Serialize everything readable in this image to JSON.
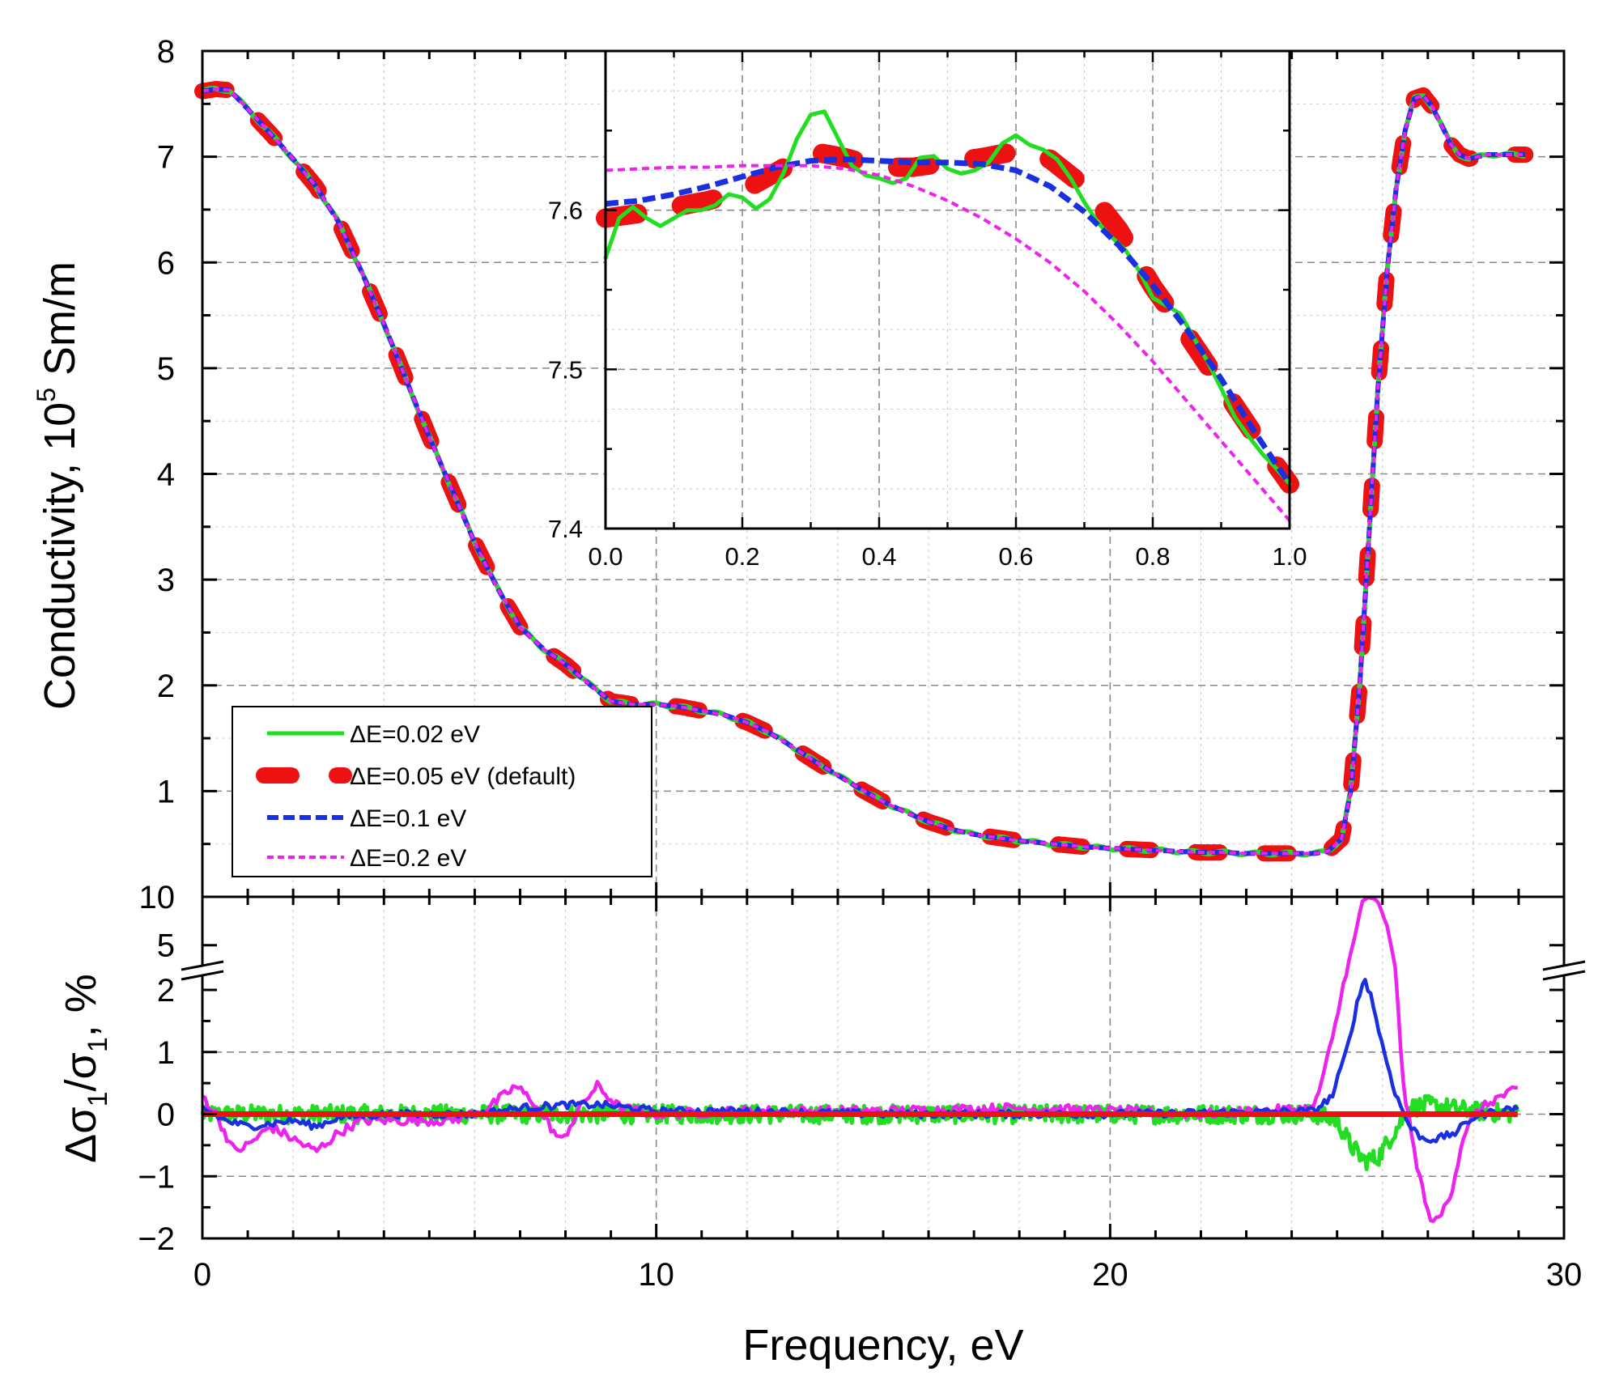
{
  "chart_data": [
    {
      "id": "main",
      "type": "line",
      "title": "",
      "xlabel": "Frequency, eV",
      "ylabel": "Conductivity, 10",
      "ylabel_exp": "5",
      "ylabel_unit": " Sm/m",
      "xlim": [
        0,
        30
      ],
      "ylim": [
        0,
        8
      ],
      "xticks": [
        0,
        10,
        20,
        30
      ],
      "yticks": [
        1,
        2,
        3,
        4,
        5,
        6,
        7,
        8
      ],
      "xtick_labels": [
        "0",
        "10",
        "20",
        "30"
      ],
      "ytick_labels": [
        "1",
        "2",
        "3",
        "4",
        "5",
        "6",
        "7",
        "8"
      ],
      "grid": true,
      "legend_position": "lower-left",
      "legend": [
        {
          "label": "ΔE=0.02 eV",
          "color": "#22dd22",
          "style": "solid"
        },
        {
          "label": "ΔE=0.05 eV (default)",
          "color": "#ee1111",
          "style": "thick-dash"
        },
        {
          "label": "ΔE=0.1 eV",
          "color": "#1a2fe0",
          "style": "dash"
        },
        {
          "label": "ΔE=0.2 eV",
          "color": "#ee22ee",
          "style": "short-dash"
        }
      ],
      "curve": {
        "x": [
          0,
          0.3,
          0.6,
          1,
          1.5,
          2,
          2.5,
          3,
          3.5,
          4,
          4.5,
          5,
          5.5,
          6,
          6.5,
          7,
          7.5,
          8,
          8.5,
          9,
          9.5,
          10,
          10.5,
          11,
          11.5,
          12,
          12.5,
          13,
          13.5,
          14,
          14.5,
          15,
          15.5,
          16,
          16.5,
          17,
          17.5,
          18,
          18.5,
          19,
          19.5,
          20,
          20.5,
          21,
          21.5,
          22,
          22.5,
          23,
          23.5,
          24,
          24.5,
          24.8,
          25.1,
          25.3,
          25.5,
          25.7,
          25.9,
          26.1,
          26.3,
          26.5,
          26.7,
          26.9,
          27.1,
          27.3,
          27.5,
          27.7,
          27.9,
          28.1,
          28.3,
          28.5,
          28.7,
          28.9,
          29.2
        ],
        "y": [
          7.62,
          7.64,
          7.63,
          7.45,
          7.22,
          6.98,
          6.72,
          6.38,
          5.92,
          5.42,
          4.88,
          4.35,
          3.85,
          3.35,
          2.92,
          2.55,
          2.35,
          2.2,
          2.02,
          1.85,
          1.82,
          1.82,
          1.8,
          1.76,
          1.72,
          1.65,
          1.55,
          1.42,
          1.28,
          1.15,
          1.02,
          0.9,
          0.8,
          0.71,
          0.64,
          0.59,
          0.56,
          0.53,
          0.51,
          0.49,
          0.47,
          0.46,
          0.45,
          0.44,
          0.43,
          0.42,
          0.42,
          0.41,
          0.41,
          0.41,
          0.41,
          0.43,
          0.55,
          1.0,
          2.0,
          3.4,
          4.8,
          5.9,
          6.7,
          7.25,
          7.55,
          7.58,
          7.47,
          7.3,
          7.12,
          7.02,
          6.98,
          7.0,
          7.02,
          7.02,
          7.02,
          7.02,
          7.02
        ]
      },
      "series": [
        {
          "name": "ΔE=0.02 eV",
          "color": "#22dd22"
        },
        {
          "name": "ΔE=0.05 eV (default)",
          "color": "#ee1111"
        },
        {
          "name": "ΔE=0.1 eV",
          "color": "#1a2fe0"
        },
        {
          "name": "ΔE=0.2 eV",
          "color": "#ee22ee"
        }
      ]
    },
    {
      "id": "inset",
      "type": "line",
      "xlabel": "",
      "ylabel": "",
      "xlim": [
        0.0,
        1.0
      ],
      "ylim": [
        7.4,
        7.7
      ],
      "xticks": [
        0.0,
        0.2,
        0.4,
        0.6,
        0.8,
        1.0
      ],
      "yticks": [
        7.4,
        7.5,
        7.6
      ],
      "xtick_labels": [
        "0.0",
        "0.2",
        "0.4",
        "0.6",
        "0.8",
        "1.0"
      ],
      "ytick_labels": [
        "7.4",
        "7.5",
        "7.6"
      ],
      "grid": true,
      "series": [
        {
          "name": "ΔE=0.02 eV",
          "color": "#22dd22",
          "x": [
            0.0,
            0.02,
            0.04,
            0.06,
            0.08,
            0.1,
            0.12,
            0.14,
            0.16,
            0.18,
            0.2,
            0.22,
            0.24,
            0.26,
            0.28,
            0.3,
            0.32,
            0.34,
            0.36,
            0.38,
            0.4,
            0.42,
            0.44,
            0.46,
            0.48,
            0.5,
            0.52,
            0.54,
            0.56,
            0.58,
            0.6,
            0.62,
            0.64,
            0.66,
            0.68,
            0.7,
            0.72,
            0.74,
            0.76,
            0.78,
            0.8,
            0.82,
            0.84,
            0.86,
            0.88,
            0.9,
            0.92,
            0.94,
            0.96,
            0.98,
            1.0
          ],
          "y": [
            7.57,
            7.595,
            7.602,
            7.595,
            7.59,
            7.595,
            7.6,
            7.6,
            7.603,
            7.61,
            7.608,
            7.601,
            7.607,
            7.623,
            7.645,
            7.66,
            7.662,
            7.645,
            7.628,
            7.622,
            7.62,
            7.617,
            7.62,
            7.633,
            7.634,
            7.626,
            7.623,
            7.625,
            7.63,
            7.642,
            7.647,
            7.641,
            7.638,
            7.632,
            7.62,
            7.605,
            7.592,
            7.583,
            7.575,
            7.562,
            7.545,
            7.54,
            7.535,
            7.52,
            7.505,
            7.488,
            7.47,
            7.458,
            7.447,
            7.438,
            7.428
          ]
        },
        {
          "name": "ΔE=0.05 eV (default)",
          "color": "#ee1111",
          "x": [
            0.0,
            0.05,
            0.1,
            0.15,
            0.2,
            0.25,
            0.3,
            0.35,
            0.4,
            0.45,
            0.5,
            0.55,
            0.6,
            0.65,
            0.7,
            0.75,
            0.8,
            0.85,
            0.9,
            0.95,
            1.0
          ],
          "y": [
            7.595,
            7.598,
            7.602,
            7.606,
            7.612,
            7.624,
            7.637,
            7.633,
            7.627,
            7.627,
            7.63,
            7.633,
            7.637,
            7.632,
            7.615,
            7.588,
            7.552,
            7.522,
            7.49,
            7.458,
            7.428
          ]
        },
        {
          "name": "ΔE=0.1 eV",
          "color": "#1a2fe0",
          "x": [
            0.0,
            0.05,
            0.1,
            0.15,
            0.2,
            0.25,
            0.3,
            0.35,
            0.4,
            0.45,
            0.5,
            0.55,
            0.6,
            0.65,
            0.7,
            0.75,
            0.8,
            0.85,
            0.9,
            0.95,
            1.0
          ],
          "y": [
            7.604,
            7.606,
            7.61,
            7.615,
            7.621,
            7.627,
            7.631,
            7.632,
            7.631,
            7.63,
            7.63,
            7.629,
            7.625,
            7.615,
            7.599,
            7.578,
            7.553,
            7.525,
            7.494,
            7.46,
            7.428
          ]
        },
        {
          "name": "ΔE=0.2 eV",
          "color": "#ee22ee",
          "x": [
            0.0,
            0.05,
            0.1,
            0.15,
            0.2,
            0.25,
            0.3,
            0.35,
            0.4,
            0.45,
            0.5,
            0.55,
            0.6,
            0.65,
            0.7,
            0.75,
            0.8,
            0.85,
            0.9,
            0.95,
            1.0
          ],
          "y": [
            7.625,
            7.626,
            7.627,
            7.627,
            7.628,
            7.628,
            7.628,
            7.626,
            7.622,
            7.615,
            7.606,
            7.595,
            7.582,
            7.567,
            7.549,
            7.528,
            7.505,
            7.48,
            7.455,
            7.43,
            7.405
          ]
        }
      ]
    },
    {
      "id": "residuals",
      "type": "line",
      "xlabel": "Frequency, eV",
      "ylabel_parts": [
        "Δσ",
        "1",
        "/σ",
        "1",
        ", %"
      ],
      "xlim": [
        0,
        30
      ],
      "ylim": [
        -2,
        2.3
      ],
      "upper_segment_ylim": [
        2.3,
        10
      ],
      "axis_break": true,
      "xticks": [
        0,
        10,
        20,
        30
      ],
      "xtick_labels": [
        "0",
        "10",
        "20",
        "30"
      ],
      "yticks": [
        -2,
        -1,
        0,
        1,
        2
      ],
      "ytick_labels": [
        "−2",
        "−1",
        "0",
        "1",
        "2"
      ],
      "upper_yticks": [
        5,
        10
      ],
      "upper_ytick_labels": [
        "5",
        "10"
      ],
      "grid": true,
      "series": [
        {
          "name": "ΔE=0.02 eV",
          "color": "#22dd22",
          "noise_amplitude": 0.15,
          "x": [
            0,
            24.5,
            25.0,
            25.3,
            25.6,
            25.9,
            26.2,
            26.6,
            27.0,
            27.5,
            28.0,
            29.0
          ],
          "y": [
            0,
            0,
            -0.1,
            -0.5,
            -0.75,
            -0.7,
            -0.35,
            0.1,
            0.15,
            0.1,
            0.05,
            0.0
          ]
        },
        {
          "name": "ΔE=0.05 eV (default)",
          "color": "#ee1111",
          "x": [
            0,
            29
          ],
          "y": [
            0,
            0
          ]
        },
        {
          "name": "ΔE=0.1 eV",
          "color": "#1a2fe0",
          "noise_amplitude": 0.06,
          "x": [
            0,
            0.5,
            1.0,
            2.0,
            2.5,
            3.0,
            4.0,
            6.0,
            7.0,
            8.0,
            8.8,
            10,
            12,
            15,
            20,
            24.5,
            24.9,
            25.2,
            25.45,
            25.6,
            25.75,
            26.0,
            26.3,
            26.6,
            26.9,
            27.2,
            27.6,
            28.0,
            28.5,
            29.0
          ],
          "y": [
            0.1,
            -0.1,
            -0.2,
            -0.1,
            -0.2,
            -0.05,
            0,
            0,
            0.1,
            0.15,
            0.15,
            0.05,
            0.05,
            0,
            0,
            0.05,
            0.3,
            1.0,
            1.8,
            2.2,
            1.9,
            1.1,
            0.3,
            -0.2,
            -0.4,
            -0.4,
            -0.3,
            -0.05,
            0.05,
            0.1
          ]
        },
        {
          "name": "ΔE=0.2 eV",
          "color": "#ee22ee",
          "noise_amplitude": 0.08,
          "x": [
            0,
            0.3,
            0.7,
            1.0,
            1.5,
            2.0,
            2.5,
            3.0,
            3.5,
            4.5,
            5.5,
            6.3,
            6.9,
            7.3,
            7.9,
            8.4,
            8.7,
            9.2,
            10,
            12,
            15,
            18,
            20,
            22,
            24.5,
            24.9,
            25.2,
            25.4,
            25.55,
            25.7,
            25.9,
            26.1,
            26.3,
            26.45,
            26.7,
            27.0,
            27.2,
            27.5,
            27.8,
            28.1,
            28.5,
            29.0
          ],
          "y": [
            0.3,
            0.0,
            -0.6,
            -0.5,
            -0.2,
            -0.4,
            -0.6,
            -0.3,
            -0.1,
            -0.1,
            -0.1,
            0.1,
            0.45,
            0.2,
            -0.45,
            0.2,
            0.45,
            0.1,
            0.0,
            0.05,
            0.05,
            0.1,
            0.05,
            0.0,
            0.1,
            1.2,
            2.3,
            6.0,
            9.5,
            10.0,
            9.5,
            7.0,
            2.3,
            0.5,
            -0.6,
            -1.6,
            -1.75,
            -1.3,
            -0.3,
            0.05,
            0.25,
            0.4
          ]
        }
      ]
    }
  ]
}
